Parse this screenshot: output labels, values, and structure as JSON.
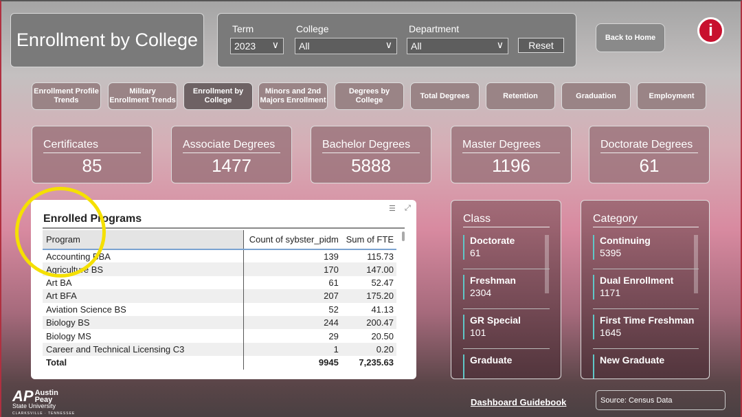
{
  "header": {
    "title": "Enrollment by College",
    "back_home": "Back to Home",
    "info_icon": "info-icon",
    "info_glyph": "i"
  },
  "filters": {
    "term_label": "Term",
    "term_value": "2023",
    "college_label": "College",
    "college_value": "All",
    "department_label": "Department",
    "department_value": "All",
    "reset": "Reset",
    "chevron": "∨"
  },
  "nav": [
    {
      "l1": "Enrollment Profile",
      "l2": "Trends"
    },
    {
      "l1": "Military",
      "l2": "Enrollment Trends"
    },
    {
      "l1": "Enrollment by",
      "l2": "College",
      "active": true
    },
    {
      "l1": "Minors and 2nd",
      "l2": "Majors Enrollment"
    },
    {
      "l1": "Degrees by",
      "l2": "College"
    },
    {
      "l1": "Total Degrees",
      "l2": ""
    },
    {
      "l1": "Retention",
      "l2": ""
    },
    {
      "l1": "Graduation",
      "l2": ""
    },
    {
      "l1": "Employment",
      "l2": ""
    }
  ],
  "kpis": [
    {
      "label": "Certificates",
      "value": "85"
    },
    {
      "label": "Associate Degrees",
      "value": "1477"
    },
    {
      "label": "Bachelor Degrees",
      "value": "5888"
    },
    {
      "label": "Master Degrees",
      "value": "1196"
    },
    {
      "label": "Doctorate Degrees",
      "value": "61"
    }
  ],
  "table": {
    "title": "Enrolled Programs",
    "columns": [
      "Program",
      "Count of sybster_pidm",
      "Sum of FTE"
    ],
    "rows": [
      [
        "Accounting BBA",
        "139",
        "115.73"
      ],
      [
        "Agriculture BS",
        "170",
        "147.00"
      ],
      [
        "Art BA",
        "61",
        "52.47"
      ],
      [
        "Art BFA",
        "207",
        "175.20"
      ],
      [
        "Aviation Science BS",
        "52",
        "41.13"
      ],
      [
        "Biology BS",
        "244",
        "200.47"
      ],
      [
        "Biology MS",
        "29",
        "20.50"
      ],
      [
        "Career and Technical Licensing C3",
        "1",
        "0.20"
      ]
    ],
    "total": [
      "Total",
      "9945",
      "7,235.63"
    ]
  },
  "class": {
    "title": "Class",
    "items": [
      {
        "name": "Doctorate",
        "value": "61"
      },
      {
        "name": "Freshman",
        "value": "2304"
      },
      {
        "name": "GR Special",
        "value": "101"
      },
      {
        "name": "Graduate",
        "value": ""
      }
    ]
  },
  "category": {
    "title": "Category",
    "items": [
      {
        "name": "Continuing",
        "value": "5395"
      },
      {
        "name": "Dual Enrollment",
        "value": "1171"
      },
      {
        "name": "First Time Freshman",
        "value": "1645"
      },
      {
        "name": "New Graduate",
        "value": ""
      }
    ]
  },
  "footer": {
    "logo": {
      "mark": "AP",
      "line1": "Austin Peay",
      "line2": "State University",
      "line3": "CLARKSVILLE · TENNESSEE"
    },
    "guidebook": "Dashboard Guidebook",
    "source": "Source: Census Data"
  },
  "colors": {
    "accent": "#c8102e",
    "highlight_ring": "#f5e000",
    "item_bar": "#5fc8c8"
  }
}
